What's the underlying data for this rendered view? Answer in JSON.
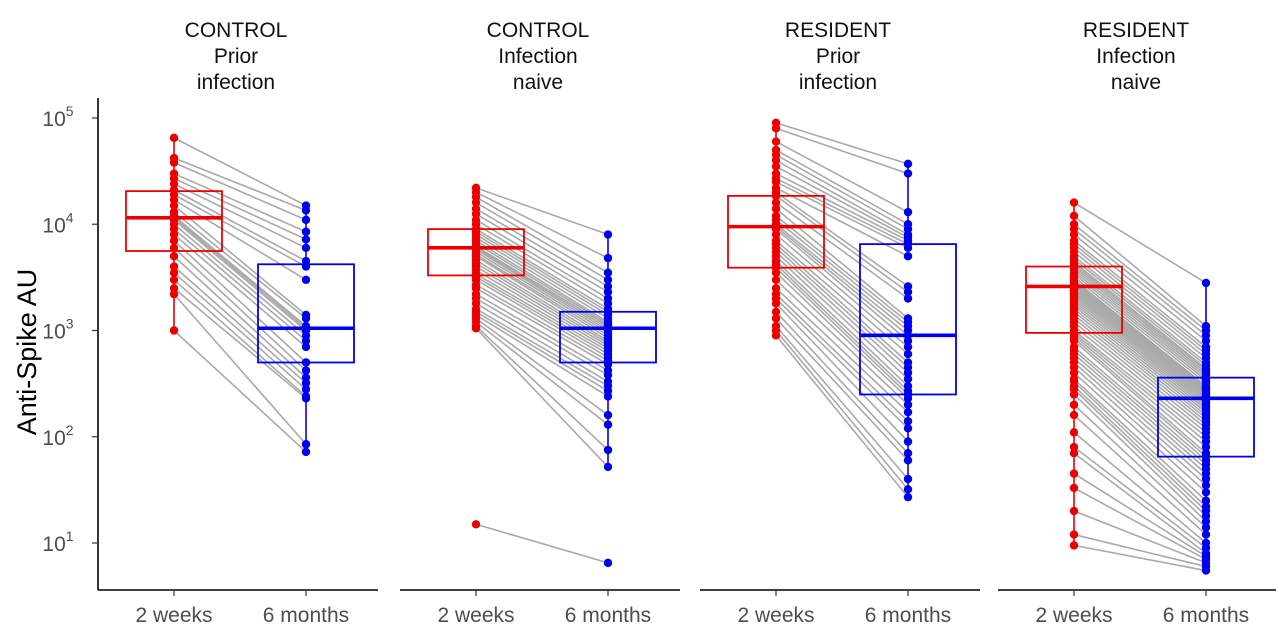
{
  "chart_data": {
    "type": "box-with-paired-points",
    "ylabel": "Anti-Spike AU",
    "yscale": "log10",
    "ylim": [
      5,
      100000
    ],
    "yticks": [
      {
        "value": 10,
        "base": "10",
        "exp": "1"
      },
      {
        "value": 100,
        "base": "10",
        "exp": "2"
      },
      {
        "value": 1000,
        "base": "10",
        "exp": "3"
      },
      {
        "value": 10000,
        "base": "10",
        "exp": "4"
      },
      {
        "value": 100000,
        "base": "10",
        "exp": "5"
      }
    ],
    "categories": [
      "2 weeks",
      "6 months"
    ],
    "colors": {
      "2 weeks": "#ee0000",
      "6 months": "#0000ee",
      "lines": "#a9a9a9"
    },
    "panels": [
      {
        "title_lines": [
          "CONTROL",
          "Prior",
          "infection"
        ],
        "box_2w": {
          "lower_whisker": 1000,
          "q1": 5600,
          "median": 11500,
          "q3": 20500,
          "upper_whisker": 65000
        },
        "box_6m": {
          "lower_whisker": 70,
          "q1": 500,
          "median": 1050,
          "q3": 4200,
          "upper_whisker": 15000
        },
        "pairs": [
          [
            65000,
            15000
          ],
          [
            42000,
            13500
          ],
          [
            38000,
            11000
          ],
          [
            30000,
            8500
          ],
          [
            27000,
            7200
          ],
          [
            24000,
            6000
          ],
          [
            21000,
            4500
          ],
          [
            19000,
            4000
          ],
          [
            17000,
            3000
          ],
          [
            15000,
            1400
          ],
          [
            13000,
            1300
          ],
          [
            12000,
            1100
          ],
          [
            11500,
            1050
          ],
          [
            11000,
            1000
          ],
          [
            10000,
            900
          ],
          [
            9000,
            800
          ],
          [
            8000,
            700
          ],
          [
            7000,
            500
          ],
          [
            6000,
            420
          ],
          [
            5000,
            360
          ],
          [
            4000,
            320
          ],
          [
            3500,
            280
          ],
          [
            3000,
            240
          ],
          [
            2500,
            230
          ],
          [
            2200,
            85
          ],
          [
            1000,
            72
          ]
        ]
      },
      {
        "title_lines": [
          "CONTROL",
          "Infection",
          "naive"
        ],
        "box_2w": {
          "lower_whisker": 1100,
          "q1": 3300,
          "median": 6000,
          "q3": 9000,
          "upper_whisker": 22000
        },
        "box_6m": {
          "lower_whisker": 52,
          "q1": 500,
          "median": 1050,
          "q3": 1500,
          "upper_whisker": 8000
        },
        "pairs": [
          [
            22000,
            8000
          ],
          [
            20000,
            4800
          ],
          [
            18000,
            3500
          ],
          [
            16000,
            3000
          ],
          [
            14000,
            2600
          ],
          [
            12500,
            2300
          ],
          [
            11000,
            2000
          ],
          [
            10000,
            1800
          ],
          [
            9000,
            1600
          ],
          [
            8500,
            1500
          ],
          [
            8000,
            1400
          ],
          [
            7500,
            1300
          ],
          [
            7000,
            1200
          ],
          [
            6600,
            1150
          ],
          [
            6200,
            1100
          ],
          [
            6000,
            1050
          ],
          [
            5800,
            1000
          ],
          [
            5500,
            950
          ],
          [
            5200,
            900
          ],
          [
            5000,
            850
          ],
          [
            4600,
            800
          ],
          [
            4300,
            760
          ],
          [
            4000,
            720
          ],
          [
            3700,
            680
          ],
          [
            3400,
            640
          ],
          [
            3200,
            600
          ],
          [
            3000,
            560
          ],
          [
            2700,
            520
          ],
          [
            2500,
            480
          ],
          [
            2200,
            420
          ],
          [
            2000,
            380
          ],
          [
            1800,
            330
          ],
          [
            1600,
            300
          ],
          [
            1500,
            270
          ],
          [
            1400,
            240
          ],
          [
            1300,
            160
          ],
          [
            1200,
            130
          ],
          [
            1100,
            75
          ],
          [
            1050,
            52
          ],
          [
            15,
            6.5
          ]
        ]
      },
      {
        "title_lines": [
          "RESIDENT",
          "Prior",
          "infection"
        ],
        "box_2w": {
          "lower_whisker": 900,
          "q1": 3900,
          "median": 9500,
          "q3": 18500,
          "upper_whisker": 90000
        },
        "box_6m": {
          "lower_whisker": 27,
          "q1": 250,
          "median": 900,
          "q3": 6500,
          "upper_whisker": 37000
        },
        "pairs": [
          [
            90000,
            37000
          ],
          [
            80000,
            30000
          ],
          [
            60000,
            13000
          ],
          [
            50000,
            10000
          ],
          [
            45000,
            9000
          ],
          [
            40000,
            8000
          ],
          [
            35000,
            7500
          ],
          [
            30000,
            7000
          ],
          [
            27000,
            6500
          ],
          [
            25000,
            6000
          ],
          [
            22000,
            5000
          ],
          [
            20000,
            2600
          ],
          [
            18500,
            2300
          ],
          [
            16000,
            2000
          ],
          [
            14000,
            1300
          ],
          [
            12000,
            1200
          ],
          [
            11000,
            1100
          ],
          [
            10000,
            1000
          ],
          [
            9500,
            900
          ],
          [
            9000,
            800
          ],
          [
            8000,
            700
          ],
          [
            7000,
            600
          ],
          [
            6500,
            500
          ],
          [
            6000,
            450
          ],
          [
            5500,
            400
          ],
          [
            5000,
            350
          ],
          [
            4500,
            300
          ],
          [
            4200,
            270
          ],
          [
            3900,
            250
          ],
          [
            3500,
            230
          ],
          [
            3000,
            200
          ],
          [
            2500,
            170
          ],
          [
            2200,
            140
          ],
          [
            2000,
            120
          ],
          [
            1800,
            90
          ],
          [
            1500,
            70
          ],
          [
            1300,
            60
          ],
          [
            1100,
            40
          ],
          [
            1000,
            32
          ],
          [
            900,
            27
          ]
        ]
      },
      {
        "title_lines": [
          "RESIDENT",
          "Infection",
          "naive"
        ],
        "box_2w": {
          "lower_whisker": 9.5,
          "q1": 950,
          "median": 2600,
          "q3": 4000,
          "upper_whisker": 16000
        },
        "box_6m": {
          "lower_whisker": 5.5,
          "q1": 65,
          "median": 230,
          "q3": 360,
          "upper_whisker": 2800
        },
        "pairs": [
          [
            16000,
            2800
          ],
          [
            12000,
            1100
          ],
          [
            10000,
            1000
          ],
          [
            9000,
            900
          ],
          [
            8000,
            800
          ],
          [
            7000,
            700
          ],
          [
            6500,
            650
          ],
          [
            6000,
            600
          ],
          [
            5500,
            550
          ],
          [
            5000,
            500
          ],
          [
            4700,
            470
          ],
          [
            4400,
            440
          ],
          [
            4200,
            420
          ],
          [
            4000,
            400
          ],
          [
            3800,
            380
          ],
          [
            3600,
            360
          ],
          [
            3400,
            340
          ],
          [
            3200,
            320
          ],
          [
            3000,
            300
          ],
          [
            2900,
            290
          ],
          [
            2800,
            280
          ],
          [
            2700,
            270
          ],
          [
            2600,
            260
          ],
          [
            2500,
            250
          ],
          [
            2400,
            240
          ],
          [
            2300,
            230
          ],
          [
            2200,
            220
          ],
          [
            2100,
            210
          ],
          [
            2000,
            200
          ],
          [
            1900,
            190
          ],
          [
            1800,
            180
          ],
          [
            1700,
            170
          ],
          [
            1600,
            160
          ],
          [
            1500,
            150
          ],
          [
            1400,
            140
          ],
          [
            1300,
            130
          ],
          [
            1200,
            120
          ],
          [
            1100,
            110
          ],
          [
            1000,
            100
          ],
          [
            950,
            90
          ],
          [
            900,
            80
          ],
          [
            850,
            70
          ],
          [
            800,
            65
          ],
          [
            700,
            60
          ],
          [
            650,
            55
          ],
          [
            600,
            50
          ],
          [
            550,
            45
          ],
          [
            500,
            40
          ],
          [
            450,
            35
          ],
          [
            400,
            30
          ],
          [
            350,
            25
          ],
          [
            330,
            22
          ],
          [
            300,
            20
          ],
          [
            280,
            18
          ],
          [
            250,
            16
          ],
          [
            200,
            14
          ],
          [
            160,
            12
          ],
          [
            110,
            10
          ],
          [
            80,
            9
          ],
          [
            70,
            8
          ],
          [
            45,
            7.5
          ],
          [
            33,
            7
          ],
          [
            20,
            6.5
          ],
          [
            12,
            6
          ],
          [
            9.5,
            5.5
          ]
        ]
      }
    ]
  }
}
